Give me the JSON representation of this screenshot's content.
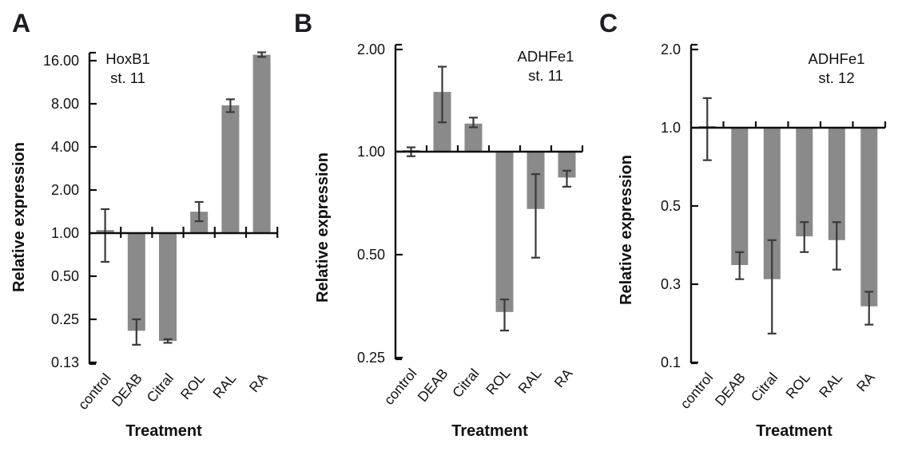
{
  "figure": {
    "kind": "three-panel bar figure",
    "colors": {
      "bar_fill": "#8a8a8a",
      "error_bar": "#3a3a3a",
      "axis": "#0f0f0f",
      "text": "#111111",
      "background": "#ffffff"
    }
  },
  "chart_data": [
    {
      "type": "bar",
      "panel": "A",
      "title": "HoxB1",
      "subtitle": "st. 11",
      "xlabel": "Treatment",
      "ylabel": "Relative expression",
      "yscale": "log",
      "grid": false,
      "legend_position": "none",
      "categories": [
        "control",
        "DEAB",
        "Citral",
        "ROL",
        "RAL",
        "RA"
      ],
      "values": [
        1.05,
        0.21,
        0.18,
        1.41,
        7.8,
        17.6
      ],
      "err_low": [
        0.63,
        0.17,
        0.175,
        1.21,
        7.0,
        17.0
      ],
      "err_high": [
        1.47,
        0.25,
        0.185,
        1.65,
        8.6,
        18.3
      ],
      "baseline": 1.0,
      "ytick_labels": [
        "16.00",
        "8.00",
        "4.00",
        "2.00",
        "1.00",
        "0.50",
        "0.25",
        "0.13"
      ],
      "ytick_values": [
        16,
        8,
        4,
        2,
        1,
        0.5,
        0.25,
        0.13
      ],
      "ylim": [
        0.13,
        19
      ]
    },
    {
      "type": "bar",
      "panel": "B",
      "title": "ADHFe1",
      "subtitle": "st. 11",
      "xlabel": "Treatment",
      "ylabel": "Relative expression",
      "yscale": "log",
      "grid": false,
      "legend_position": "none",
      "categories": [
        "control",
        "DEAB",
        "Citral",
        "ROL",
        "RAL",
        "RA"
      ],
      "values": [
        1.0,
        1.5,
        1.21,
        0.34,
        0.68,
        0.84
      ],
      "err_low": [
        0.97,
        1.22,
        1.18,
        0.3,
        0.49,
        0.79
      ],
      "err_high": [
        1.03,
        1.78,
        1.26,
        0.37,
        0.86,
        0.88
      ],
      "baseline": 1.0,
      "ytick_labels": [
        "2.00",
        "1.00",
        "0.50",
        "0.25"
      ],
      "ytick_values": [
        2,
        1,
        0.5,
        0.25
      ],
      "ylim": [
        0.25,
        2.05
      ]
    },
    {
      "type": "bar",
      "panel": "C",
      "title": "ADHFe1",
      "subtitle": "st. 12",
      "xlabel": "Treatment",
      "ylabel": "Relative expression",
      "yscale": "log",
      "grid": false,
      "legend_position": "none",
      "categories": [
        "control",
        "DEAB",
        "Citral",
        "ROL",
        "RAL",
        "RA"
      ],
      "values": [
        1.01,
        0.34,
        0.31,
        0.41,
        0.4,
        0.22
      ],
      "err_low": [
        0.75,
        0.31,
        0.15,
        0.37,
        0.33,
        0.17
      ],
      "err_high": [
        1.3,
        0.37,
        0.4,
        0.45,
        0.45,
        0.27
      ],
      "baseline": 1.0,
      "ytick_labels": [
        "2.0",
        "1.0",
        "0.5",
        "0.3",
        "0.1"
      ],
      "ytick_values": [
        2,
        1,
        0.5,
        0.3,
        0.1
      ],
      "ylim": [
        0.1,
        2.05
      ]
    }
  ]
}
